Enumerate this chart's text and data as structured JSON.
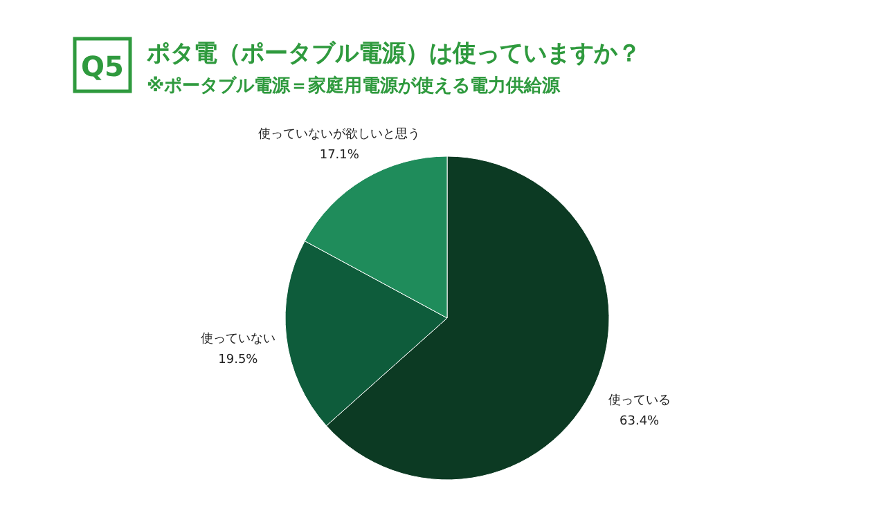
{
  "chart_data": {
    "type": "pie",
    "title": "ポタ電（ポータブル電源）は使っていますか？",
    "subtitle": "※ポータブル電源＝家庭用電源が使える電力供給源",
    "annotations": [
      "Q5"
    ],
    "categories": [
      "使っている",
      "使っていない",
      "使っていないが欲しいと思う"
    ],
    "values": [
      63.4,
      19.5,
      17.1
    ],
    "value_labels": [
      "63.4%",
      "19.5%",
      "17.1%"
    ],
    "colors": [
      "#0c3a23",
      "#0e5c3b",
      "#1f8c5b"
    ]
  }
}
